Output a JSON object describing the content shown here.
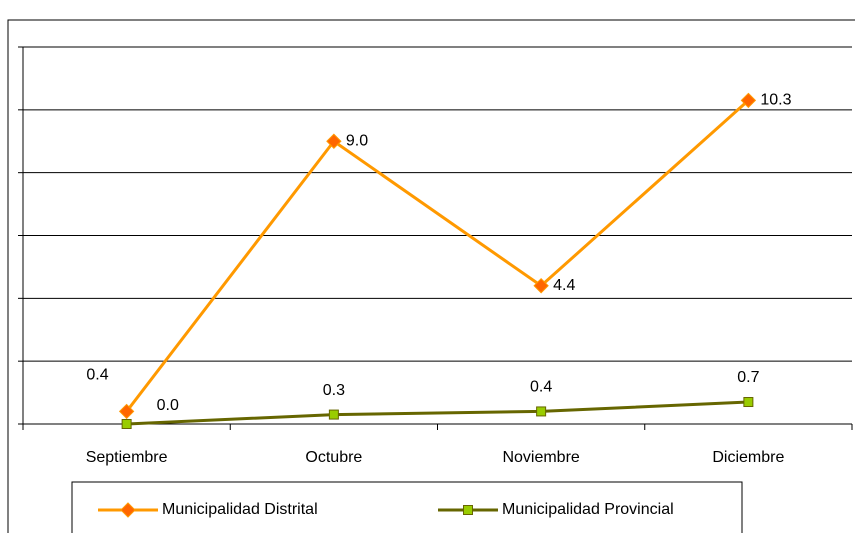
{
  "chart_data": {
    "type": "line",
    "categories": [
      "Septiembre",
      "Octubre",
      "Noviembre",
      "Diciembre"
    ],
    "series": [
      {
        "name": "Municipalidad Distrital",
        "color": "#FF9900",
        "marker_color": "#FF6600",
        "marker": "diamond",
        "values": [
          0.4,
          9.0,
          4.4,
          10.3
        ],
        "value_labels": [
          "0.4",
          "9.0",
          "4.4",
          "10.3"
        ]
      },
      {
        "name": "Municipalidad Provincial",
        "color": "#666600",
        "marker_color": "#99CC00",
        "marker": "square",
        "values": [
          0.0,
          0.3,
          0.4,
          0.7
        ],
        "value_labels": [
          "0.0",
          "0.3",
          "0.4",
          "0.7"
        ]
      }
    ],
    "ylim": [
      0,
      12
    ],
    "yticks": [
      0,
      2,
      4,
      6,
      8,
      10,
      12
    ],
    "grid": true,
    "legend": "bottom"
  }
}
